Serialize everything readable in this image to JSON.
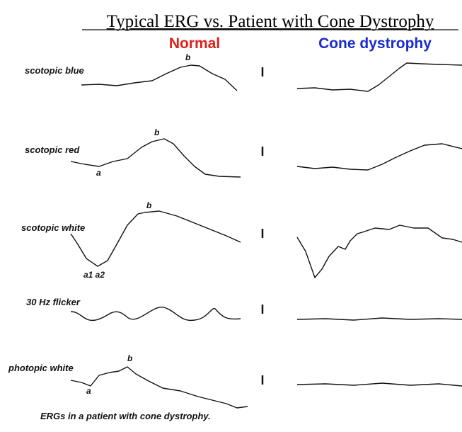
{
  "header": {
    "title": "Typical ERG vs. Patient with Cone Dystrophy",
    "columns": [
      "Normal",
      "Cone dystrophy"
    ]
  },
  "rows": [
    {
      "label": "scotopic blue",
      "marks": [
        "b"
      ]
    },
    {
      "label": "scotopic red",
      "marks": [
        "b",
        "a"
      ]
    },
    {
      "label": "scotopic white",
      "marks": [
        "b",
        "a1 a2"
      ]
    },
    {
      "label": "30 Hz flicker",
      "marks": []
    },
    {
      "label": "photopic white",
      "marks": [
        "b",
        "a"
      ]
    }
  ],
  "caption": "ERGs in a patient with cone dystrophy."
}
